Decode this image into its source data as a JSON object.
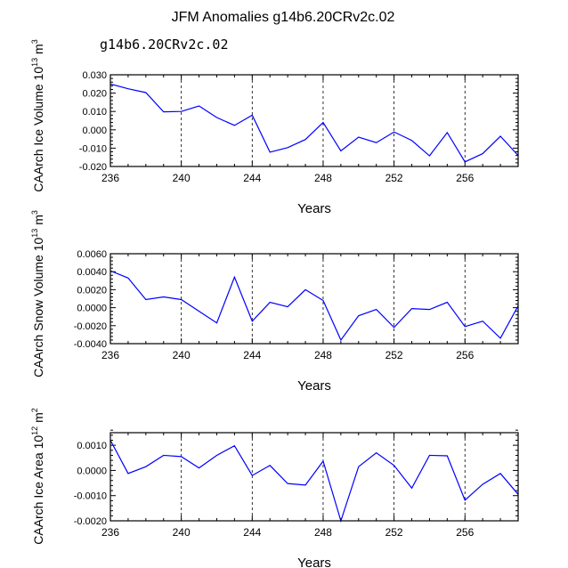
{
  "title": "JFM Anomalies g14b6.20CRv2c.02",
  "legend_label": "g14b6.20CRv2c.02",
  "legend_color": "#3333ff",
  "line_color": "#0000ff",
  "chart_data": [
    {
      "type": "line",
      "xlabel": "Years",
      "ylabel": "CAArch Ice Volume 10",
      "ylabel_exp": "13",
      "ylabel_unit": "m",
      "ylabel_unit_exp": "3",
      "xlim": [
        236,
        259
      ],
      "ylim": [
        -0.02,
        0.03
      ],
      "x_ticks": [
        236,
        240,
        244,
        248,
        252,
        256
      ],
      "y_ticks": [
        -0.02,
        -0.01,
        0.0,
        0.01,
        0.02,
        0.03
      ],
      "y_tick_labels": [
        "-0.020",
        "-0.010",
        "0.000",
        "0.010",
        "0.020",
        "0.030"
      ],
      "y_decimals": 3,
      "gridlines_x": [
        240,
        244,
        248,
        252,
        256
      ],
      "series": [
        {
          "x": [
            236,
            237,
            238,
            239,
            240,
            241,
            242,
            243,
            244,
            245,
            246,
            247,
            248,
            249,
            250,
            251,
            252,
            253,
            254,
            255,
            256,
            257,
            258,
            259
          ],
          "values": [
            0.025,
            0.0224,
            0.0203,
            0.0098,
            0.01,
            0.013,
            0.0067,
            0.0024,
            0.008,
            -0.0122,
            -0.0097,
            -0.0053,
            0.004,
            -0.0115,
            -0.004,
            -0.007,
            -0.0012,
            -0.0058,
            -0.0142,
            -0.0015,
            -0.0175,
            -0.013,
            -0.0035,
            -0.014
          ]
        }
      ]
    },
    {
      "type": "line",
      "xlabel": "Years",
      "ylabel": "CAArch Snow Volume 10",
      "ylabel_exp": "13",
      "ylabel_unit": "m",
      "ylabel_unit_exp": "3",
      "xlim": [
        236,
        259
      ],
      "ylim": [
        -0.004,
        0.006
      ],
      "x_ticks": [
        236,
        240,
        244,
        248,
        252,
        256
      ],
      "y_ticks": [
        -0.004,
        -0.002,
        0.0,
        0.002,
        0.004,
        0.006
      ],
      "y_tick_labels": [
        "-0.0040",
        "-0.0020",
        "0.0000",
        "0.0020",
        "0.0040",
        "0.0060"
      ],
      "y_decimals": 4,
      "gridlines_x": [
        240,
        244,
        248,
        252,
        256
      ],
      "series": [
        {
          "x": [
            236,
            237,
            238,
            239,
            240,
            241,
            242,
            243,
            244,
            245,
            246,
            247,
            248,
            249,
            250,
            251,
            252,
            253,
            254,
            255,
            256,
            257,
            258,
            259
          ],
          "values": [
            0.0041,
            0.0033,
            0.0009,
            0.0012,
            0.0009,
            -0.0004,
            -0.0017,
            0.0034,
            -0.0015,
            0.0006,
            0.0001,
            0.002,
            0.0008,
            -0.0036,
            -0.0009,
            -0.0002,
            -0.0022,
            -0.0001,
            -0.0002,
            0.0006,
            -0.0021,
            -0.0015,
            -0.0034,
            0.0002
          ]
        }
      ]
    },
    {
      "type": "line",
      "xlabel": "Years",
      "ylabel": "CAArch Ice Area 10",
      "ylabel_exp": "12",
      "ylabel_unit": "m",
      "ylabel_unit_exp": "2",
      "xlim": [
        236,
        259
      ],
      "ylim": [
        -0.002,
        0.0015
      ],
      "x_ticks": [
        236,
        240,
        244,
        248,
        252,
        256
      ],
      "y_ticks": [
        -0.002,
        -0.001,
        0.0,
        0.001
      ],
      "y_tick_labels": [
        "-0.0020",
        "-0.0010",
        "0.0000",
        "0.0010"
      ],
      "y_decimals": 4,
      "gridlines_x": [
        240,
        244,
        248,
        252,
        256
      ],
      "series": [
        {
          "x": [
            236,
            237,
            238,
            239,
            240,
            241,
            242,
            243,
            244,
            245,
            246,
            247,
            248,
            249,
            250,
            251,
            252,
            253,
            254,
            255,
            256,
            257,
            258,
            259
          ],
          "values": [
            0.0012,
            -0.00012,
            0.00015,
            0.0006,
            0.00055,
            0.0001,
            0.0006,
            0.00098,
            -0.0002,
            0.0002,
            -0.00052,
            -0.00058,
            0.00037,
            -0.002,
            0.00015,
            0.0007,
            0.0002,
            -0.0007,
            0.0006,
            0.00058,
            -0.00118,
            -0.00055,
            -0.00012,
            -0.00095
          ]
        }
      ]
    }
  ]
}
